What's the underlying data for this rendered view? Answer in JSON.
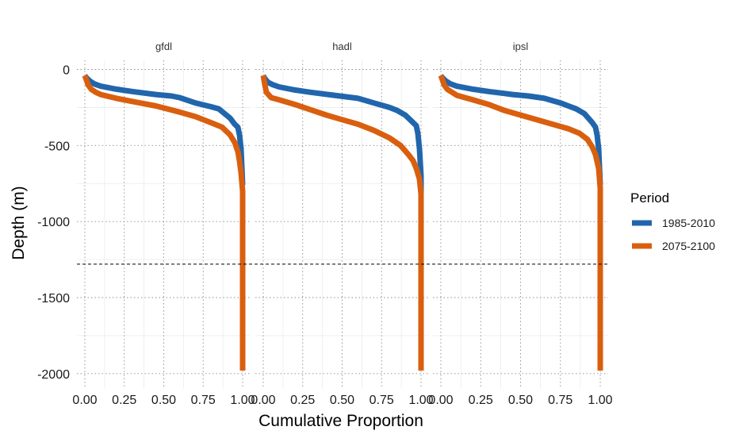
{
  "chart_data": {
    "type": "line",
    "facet_labels": [
      "gfdl",
      "hadl",
      "ipsl"
    ],
    "xlabel": "Cumulative Proportion",
    "ylabel": "Depth (m)",
    "xlim": [
      0,
      1
    ],
    "ylim": [
      -2100,
      60
    ],
    "x_ticks": [
      "0.00",
      "0.25",
      "0.50",
      "0.75",
      "1.00"
    ],
    "y_ticks": [
      {
        "value": 0,
        "label": "0"
      },
      {
        "value": -500,
        "label": "-500"
      },
      {
        "value": -1000,
        "label": "-1000"
      },
      {
        "value": -1500,
        "label": "-1500"
      },
      {
        "value": -2000,
        "label": "-2000"
      }
    ],
    "grid": true,
    "reference_line": {
      "depth": -1280,
      "style": "dashed"
    },
    "legend": {
      "title": "Period",
      "placement": "right",
      "entries": [
        {
          "label": "1985-2010",
          "color": "#2166ac"
        },
        {
          "label": "2075-2100",
          "color": "#d95f0e"
        }
      ]
    },
    "series_colors": {
      "1985-2010": "#2166ac",
      "2075-2100": "#d95f0e"
    },
    "facets": [
      {
        "name": "gfdl",
        "series": [
          {
            "period": "1985-2010",
            "points": [
              [
                0.0,
                -40
              ],
              [
                0.01,
                -55
              ],
              [
                0.03,
                -75
              ],
              [
                0.06,
                -95
              ],
              [
                0.1,
                -110
              ],
              [
                0.2,
                -130
              ],
              [
                0.3,
                -145
              ],
              [
                0.45,
                -165
              ],
              [
                0.55,
                -175
              ],
              [
                0.6,
                -185
              ],
              [
                0.7,
                -220
              ],
              [
                0.8,
                -245
              ],
              [
                0.85,
                -260
              ],
              [
                0.92,
                -320
              ],
              [
                0.95,
                -360
              ],
              [
                0.97,
                -380
              ],
              [
                0.98,
                -430
              ],
              [
                0.99,
                -520
              ],
              [
                1.0,
                -760
              ]
            ]
          },
          {
            "period": "2075-2100",
            "points": [
              [
                0.0,
                -40
              ],
              [
                0.01,
                -70
              ],
              [
                0.02,
                -100
              ],
              [
                0.04,
                -130
              ],
              [
                0.07,
                -150
              ],
              [
                0.1,
                -165
              ],
              [
                0.2,
                -190
              ],
              [
                0.3,
                -210
              ],
              [
                0.45,
                -240
              ],
              [
                0.6,
                -280
              ],
              [
                0.7,
                -310
              ],
              [
                0.8,
                -350
              ],
              [
                0.87,
                -380
              ],
              [
                0.92,
                -430
              ],
              [
                0.95,
                -480
              ],
              [
                0.97,
                -540
              ],
              [
                0.98,
                -600
              ],
              [
                0.99,
                -680
              ],
              [
                1.0,
                -800
              ],
              [
                1.0,
                -1980
              ]
            ]
          }
        ]
      },
      {
        "name": "hadl",
        "series": [
          {
            "period": "1985-2010",
            "points": [
              [
                0.0,
                -40
              ],
              [
                0.01,
                -60
              ],
              [
                0.03,
                -85
              ],
              [
                0.06,
                -100
              ],
              [
                0.1,
                -115
              ],
              [
                0.2,
                -135
              ],
              [
                0.3,
                -150
              ],
              [
                0.45,
                -170
              ],
              [
                0.6,
                -190
              ],
              [
                0.7,
                -220
              ],
              [
                0.8,
                -250
              ],
              [
                0.85,
                -270
              ],
              [
                0.9,
                -300
              ],
              [
                0.94,
                -340
              ],
              [
                0.97,
                -370
              ],
              [
                0.98,
                -420
              ],
              [
                0.99,
                -520
              ],
              [
                1.0,
                -700
              ],
              [
                1.0,
                -920
              ]
            ]
          },
          {
            "period": "2075-2100",
            "points": [
              [
                0.0,
                -40
              ],
              [
                0.01,
                -100
              ],
              [
                0.02,
                -150
              ],
              [
                0.05,
                -185
              ],
              [
                0.1,
                -200
              ],
              [
                0.2,
                -230
              ],
              [
                0.3,
                -265
              ],
              [
                0.4,
                -300
              ],
              [
                0.5,
                -330
              ],
              [
                0.6,
                -360
              ],
              [
                0.7,
                -400
              ],
              [
                0.8,
                -450
              ],
              [
                0.87,
                -500
              ],
              [
                0.92,
                -560
              ],
              [
                0.95,
                -600
              ],
              [
                0.97,
                -650
              ],
              [
                0.99,
                -720
              ],
              [
                1.0,
                -820
              ],
              [
                1.0,
                -1980
              ]
            ]
          }
        ]
      },
      {
        "name": "ipsl",
        "series": [
          {
            "period": "1985-2010",
            "points": [
              [
                0.0,
                -40
              ],
              [
                0.01,
                -55
              ],
              [
                0.03,
                -75
              ],
              [
                0.06,
                -95
              ],
              [
                0.1,
                -110
              ],
              [
                0.2,
                -130
              ],
              [
                0.3,
                -145
              ],
              [
                0.45,
                -165
              ],
              [
                0.55,
                -175
              ],
              [
                0.65,
                -190
              ],
              [
                0.75,
                -220
              ],
              [
                0.8,
                -240
              ],
              [
                0.85,
                -260
              ],
              [
                0.9,
                -290
              ],
              [
                0.95,
                -350
              ],
              [
                0.97,
                -380
              ],
              [
                0.98,
                -430
              ],
              [
                0.99,
                -520
              ],
              [
                1.0,
                -760
              ]
            ]
          },
          {
            "period": "2075-2100",
            "points": [
              [
                0.0,
                -40
              ],
              [
                0.01,
                -70
              ],
              [
                0.02,
                -100
              ],
              [
                0.04,
                -130
              ],
              [
                0.07,
                -150
              ],
              [
                0.1,
                -170
              ],
              [
                0.2,
                -200
              ],
              [
                0.3,
                -230
              ],
              [
                0.4,
                -270
              ],
              [
                0.5,
                -300
              ],
              [
                0.6,
                -330
              ],
              [
                0.7,
                -360
              ],
              [
                0.8,
                -390
              ],
              [
                0.87,
                -420
              ],
              [
                0.92,
                -460
              ],
              [
                0.95,
                -510
              ],
              [
                0.97,
                -560
              ],
              [
                0.99,
                -650
              ],
              [
                1.0,
                -780
              ],
              [
                1.0,
                -1980
              ]
            ]
          }
        ]
      }
    ]
  }
}
